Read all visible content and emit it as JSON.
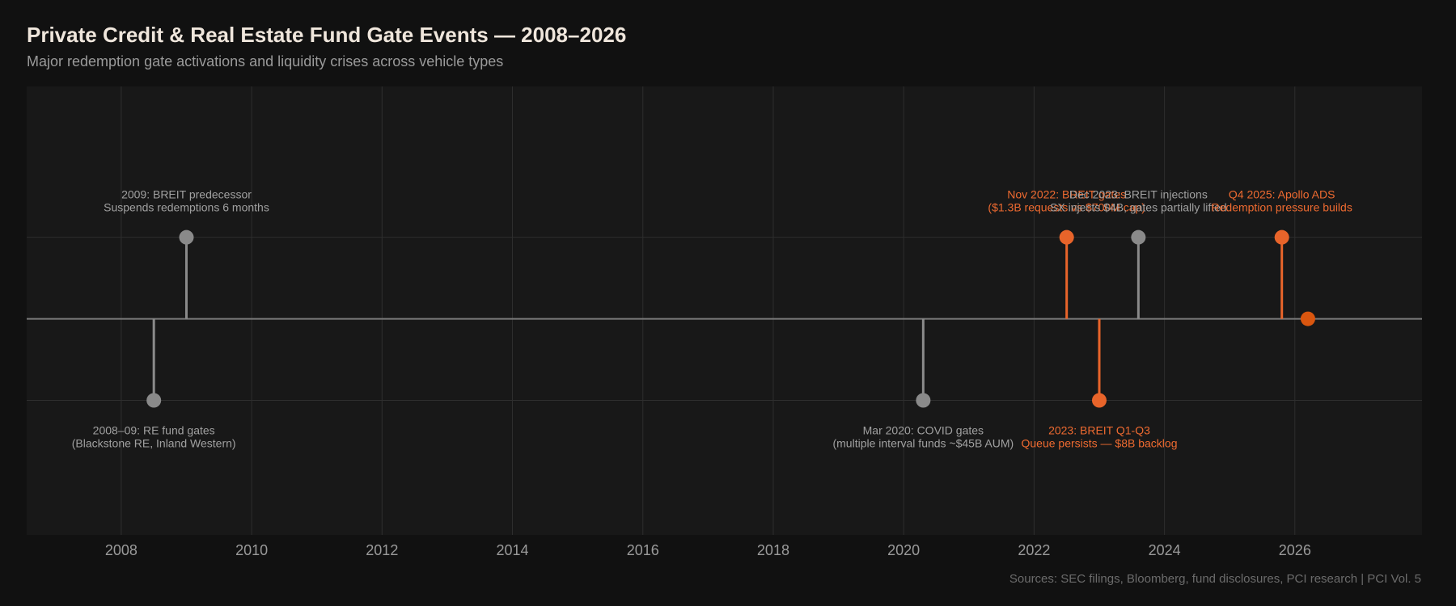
{
  "title": "Private Credit & Real Estate Fund Gate Events — 2008–2026",
  "subtitle": "Major redemption gate activations and liquidity crises across vehicle types",
  "source": "Sources: SEC filings, Bloomberg, fund disclosures, PCI research | PCI Vol. 5",
  "colors": {
    "background": "#111111",
    "plot_background": "#181818",
    "grid": "#2e2e2e",
    "axis_line": "#7a7a7a",
    "gray_event": "#8a8a8a",
    "orange_event": "#e8642a",
    "current_marker": "#d9560f",
    "gray_label": "#a0a0a0",
    "orange_label": "#ee6a30",
    "tick_label": "#9a9a9a"
  },
  "chart_data": {
    "type": "scatter",
    "x_unit": "year",
    "xlim": [
      2006.55,
      2027.95
    ],
    "ylim": [
      -2.65,
      2.85
    ],
    "xticks": [
      2008,
      2010,
      2012,
      2014,
      2016,
      2018,
      2020,
      2022,
      2024,
      2026
    ],
    "xtick_labels": [
      "2008",
      "2010",
      "2012",
      "2014",
      "2016",
      "2018",
      "2020",
      "2022",
      "2024",
      "2026"
    ],
    "grid": true,
    "events": [
      {
        "x": 2008.5,
        "y": -1,
        "color": "gray",
        "label_lines": [
          "2008–09: RE fund gates",
          "(Blackstone RE, Inland Western)"
        ]
      },
      {
        "x": 2009.0,
        "y": 1,
        "color": "gray",
        "label_lines": [
          "2009: BREIT predecessor",
          "Suspends redemptions 6 months"
        ]
      },
      {
        "x": 2020.3,
        "y": -1,
        "color": "gray",
        "label_lines": [
          "Mar 2020: COVID gates",
          "(multiple interval funds ~$45B AUM)"
        ]
      },
      {
        "x": 2022.5,
        "y": 1,
        "color": "orange",
        "label_lines": [
          "Nov 2022: BREIT gates",
          "($1.3B requests vs $700M cap)"
        ]
      },
      {
        "x": 2023.0,
        "y": -1,
        "color": "orange",
        "label_lines": [
          "2023: BREIT Q1-Q3",
          "Queue persists — $8B backlog"
        ]
      },
      {
        "x": 2023.6,
        "y": 1,
        "color": "gray",
        "label_lines": [
          "Dec 2023: BREIT injections",
          "SX injects $4B, gates partially lifted"
        ]
      },
      {
        "x": 2025.8,
        "y": 1,
        "color": "orange",
        "label_lines": [
          "Q4 2025: Apollo ADS",
          "Redemption pressure builds"
        ]
      }
    ],
    "current_marker": {
      "x": 2026.2,
      "y": 0
    }
  }
}
